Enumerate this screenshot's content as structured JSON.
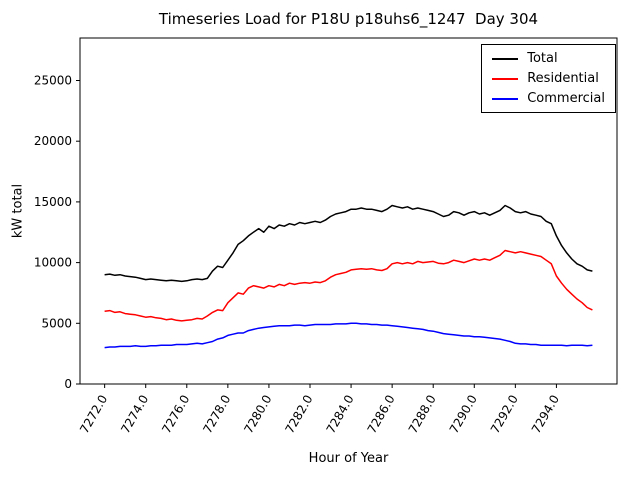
{
  "chart_data": {
    "type": "line",
    "title": "Timeseries Load for P18U p18uhs6_1247  Day 304",
    "xlabel": "Hour of Year",
    "ylabel": "kW total",
    "xlim": [
      7270.8,
      7296.95
    ],
    "ylim": [
      0,
      28500
    ],
    "grid": false,
    "legend_position": "upper right",
    "x_ticks": [
      7272,
      7274,
      7276,
      7278,
      7280,
      7282,
      7284,
      7286,
      7288,
      7290,
      7292,
      7294
    ],
    "x_tick_labels": [
      "7272.0",
      "7274.0",
      "7276.0",
      "7278.0",
      "7280.0",
      "7282.0",
      "7284.0",
      "7286.0",
      "7288.0",
      "7290.0",
      "7292.0",
      "7294.0"
    ],
    "y_ticks": [
      0,
      5000,
      10000,
      15000,
      20000,
      25000
    ],
    "y_tick_labels": [
      "0",
      "5000",
      "10000",
      "15000",
      "20000",
      "25000"
    ],
    "x": [
      7272.0,
      7272.25,
      7272.5,
      7272.75,
      7273.0,
      7273.25,
      7273.5,
      7273.75,
      7274.0,
      7274.25,
      7274.5,
      7274.75,
      7275.0,
      7275.25,
      7275.5,
      7275.75,
      7276.0,
      7276.25,
      7276.5,
      7276.75,
      7277.0,
      7277.25,
      7277.5,
      7277.75,
      7278.0,
      7278.25,
      7278.5,
      7278.75,
      7279.0,
      7279.25,
      7279.5,
      7279.75,
      7280.0,
      7280.25,
      7280.5,
      7280.75,
      7281.0,
      7281.25,
      7281.5,
      7281.75,
      7282.0,
      7282.25,
      7282.5,
      7282.75,
      7283.0,
      7283.25,
      7283.5,
      7283.75,
      7284.0,
      7284.25,
      7284.5,
      7284.75,
      7285.0,
      7285.25,
      7285.5,
      7285.75,
      7286.0,
      7286.25,
      7286.5,
      7286.75,
      7287.0,
      7287.25,
      7287.5,
      7287.75,
      7288.0,
      7288.25,
      7288.5,
      7288.75,
      7289.0,
      7289.25,
      7289.5,
      7289.75,
      7290.0,
      7290.25,
      7290.5,
      7290.75,
      7291.0,
      7291.25,
      7291.5,
      7291.75,
      7292.0,
      7292.25,
      7292.5,
      7292.75,
      7293.0,
      7293.25,
      7293.5,
      7293.75,
      7294.0,
      7294.25,
      7294.5,
      7294.75,
      7295.0,
      7295.25,
      7295.5,
      7295.75
    ],
    "series": [
      {
        "name": "Total",
        "color": "#000000",
        "values": [
          9000,
          9050,
          8950,
          9000,
          8900,
          8850,
          8800,
          8700,
          8600,
          8650,
          8600,
          8550,
          8500,
          8550,
          8500,
          8450,
          8500,
          8600,
          8650,
          8600,
          8700,
          9300,
          9700,
          9600,
          10200,
          10800,
          11500,
          11800,
          12200,
          12500,
          12800,
          12500,
          13000,
          12800,
          13100,
          13000,
          13200,
          13100,
          13300,
          13200,
          13300,
          13400,
          13300,
          13500,
          13800,
          14000,
          14100,
          14200,
          14400,
          14400,
          14500,
          14400,
          14400,
          14300,
          14200,
          14400,
          14700,
          14600,
          14500,
          14600,
          14400,
          14500,
          14400,
          14300,
          14200,
          14000,
          13800,
          13900,
          14200,
          14100,
          13900,
          14100,
          14200,
          14000,
          14100,
          13900,
          14100,
          14300,
          14700,
          14500,
          14200,
          14100,
          14200,
          14000,
          13900,
          13800,
          13400,
          13200,
          12200,
          11400,
          10800,
          10300,
          9900,
          9700,
          9400,
          9300
        ]
      },
      {
        "name": "Residential",
        "color": "#ff0000",
        "values": [
          6000,
          6050,
          5900,
          5950,
          5800,
          5750,
          5700,
          5600,
          5500,
          5550,
          5450,
          5400,
          5300,
          5350,
          5250,
          5200,
          5250,
          5300,
          5400,
          5350,
          5600,
          5900,
          6100,
          6050,
          6700,
          7100,
          7500,
          7400,
          7900,
          8100,
          8000,
          7900,
          8100,
          8000,
          8200,
          8100,
          8300,
          8200,
          8300,
          8350,
          8300,
          8400,
          8350,
          8500,
          8800,
          9000,
          9100,
          9200,
          9400,
          9450,
          9500,
          9450,
          9500,
          9400,
          9350,
          9500,
          9900,
          10000,
          9900,
          10000,
          9900,
          10100,
          10000,
          10050,
          10100,
          9950,
          9900,
          10000,
          10200,
          10100,
          10000,
          10150,
          10300,
          10200,
          10300,
          10200,
          10400,
          10600,
          11000,
          10900,
          10800,
          10900,
          10800,
          10700,
          10600,
          10500,
          10200,
          9900,
          8900,
          8300,
          7800,
          7400,
          7000,
          6700,
          6300,
          6100
        ]
      },
      {
        "name": "Commercial",
        "color": "#0000ff",
        "values": [
          3000,
          3050,
          3050,
          3100,
          3100,
          3100,
          3150,
          3100,
          3100,
          3150,
          3150,
          3200,
          3200,
          3200,
          3250,
          3250,
          3250,
          3300,
          3350,
          3300,
          3400,
          3500,
          3700,
          3800,
          4000,
          4100,
          4200,
          4200,
          4400,
          4500,
          4600,
          4650,
          4700,
          4750,
          4800,
          4800,
          4800,
          4850,
          4850,
          4800,
          4850,
          4900,
          4900,
          4900,
          4900,
          4950,
          4950,
          4950,
          5000,
          5000,
          4950,
          4950,
          4900,
          4900,
          4850,
          4850,
          4800,
          4750,
          4700,
          4650,
          4600,
          4550,
          4500,
          4400,
          4350,
          4250,
          4150,
          4100,
          4050,
          4000,
          3950,
          3950,
          3900,
          3900,
          3850,
          3800,
          3750,
          3700,
          3600,
          3500,
          3350,
          3300,
          3300,
          3250,
          3250,
          3200,
          3200,
          3200,
          3200,
          3200,
          3150,
          3200,
          3200,
          3200,
          3150,
          3200
        ]
      }
    ]
  }
}
